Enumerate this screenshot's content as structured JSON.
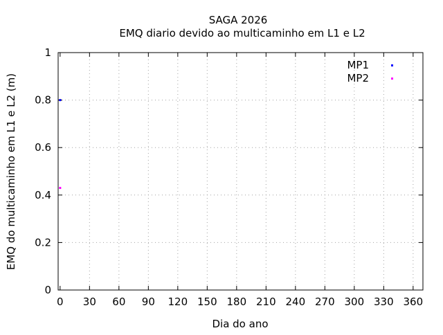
{
  "chart_data": {
    "type": "scatter",
    "title": "SAGA 2026",
    "subtitle": "EMQ diario devido ao multicaminho em L1 e L2",
    "xlabel": "Dia do ano",
    "ylabel": "EMQ do multicaminho em L1 e L2 (m)",
    "xlim": [
      -2,
      370
    ],
    "ylim": [
      0,
      1
    ],
    "xticks": [
      0,
      30,
      60,
      90,
      120,
      150,
      180,
      210,
      240,
      270,
      300,
      330,
      360
    ],
    "yticks": [
      "0",
      "0.2",
      "0.4",
      "0.6",
      "0.8",
      "1"
    ],
    "grid": true,
    "legend_position": "top-right",
    "series": [
      {
        "name": "MP1",
        "color": "#0000ff",
        "x": [
          0
        ],
        "y": [
          0.8
        ]
      },
      {
        "name": "MP2",
        "color": "#ff00ff",
        "x": [
          0
        ],
        "y": [
          0.43
        ]
      }
    ]
  }
}
